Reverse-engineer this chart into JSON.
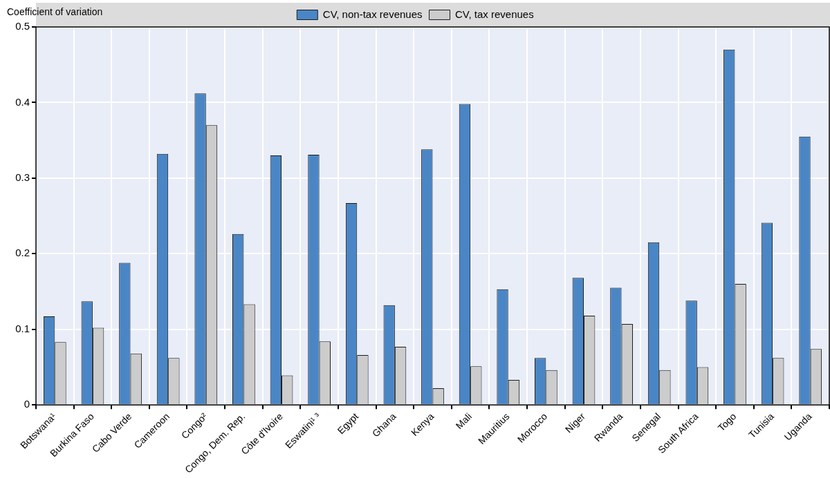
{
  "chart_data": {
    "type": "bar",
    "ylabel": "Coefficient of variation",
    "categories": [
      "Botswana¹",
      "Burkina Faso",
      "Cabo Verde",
      "Cameroon",
      "Congo²",
      "Congo, Dem. Rep.",
      "Côte d'Ivoire",
      "Eswatini¹ ³",
      "Egypt",
      "Ghana",
      "Kenya",
      "Mali",
      "Mauritius",
      "Morocco",
      "Niger",
      "Rwanda",
      "Senegal",
      "South Africa",
      "Togo",
      "Tunisia",
      "Uganda"
    ],
    "series": [
      {
        "name": "CV, non-tax revenues",
        "color": "#4a86c5",
        "values": [
          0.117,
          0.137,
          0.188,
          0.332,
          0.412,
          0.226,
          0.33,
          0.331,
          0.267,
          0.132,
          0.338,
          0.398,
          0.153,
          0.062,
          0.168,
          0.155,
          0.215,
          0.138,
          0.47,
          0.241,
          0.355
        ]
      },
      {
        "name": "CV, tax revenues",
        "color": "#cccccc",
        "values": [
          0.083,
          0.102,
          0.068,
          0.062,
          0.37,
          0.133,
          0.039,
          0.084,
          0.066,
          0.077,
          0.022,
          0.051,
          0.033,
          0.046,
          0.118,
          0.107,
          0.046,
          0.05,
          0.16,
          0.062,
          0.074
        ]
      }
    ],
    "ylim": [
      0,
      0.5
    ],
    "yticks": [
      0,
      0.1,
      0.2,
      0.3,
      0.4,
      0.5
    ],
    "grid": true,
    "legend": "top"
  }
}
